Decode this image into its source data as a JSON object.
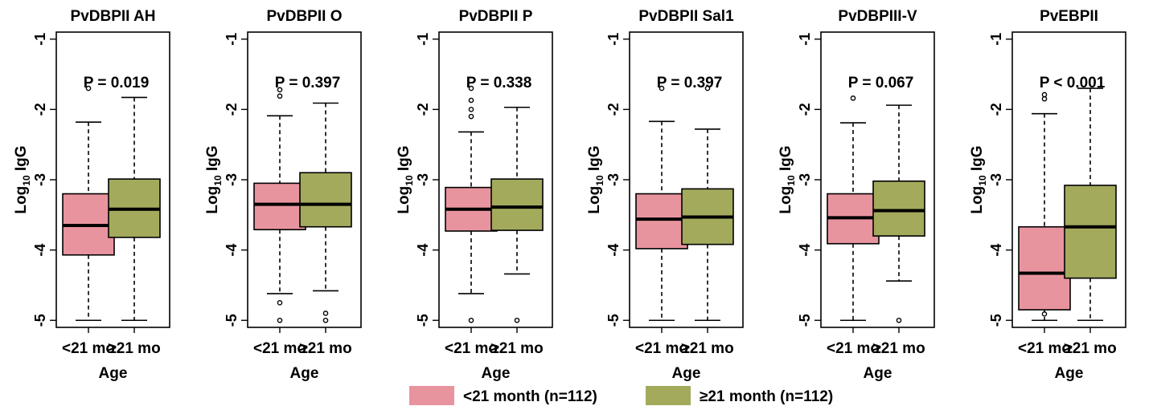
{
  "chart_data": {
    "type": "box",
    "ylabel_main": "Log",
    "ylabel_sub": "10",
    "ylabel_rest": " IgG",
    "xlabel": "Age",
    "categories": [
      "<21 mo",
      "≥21 mo"
    ],
    "ylim": [
      -5.1,
      -0.9
    ],
    "yticks": [
      -1,
      -2,
      -3,
      -4,
      -5
    ],
    "colors": {
      "young": "#E8949F",
      "old": "#A3AA5C"
    },
    "legend": {
      "placement": "bottom-center",
      "items": [
        {
          "label": "<21 month (n=112)",
          "color": "#E8949F"
        },
        {
          "label": "≥21 month (n=112)",
          "color": "#A3AA5C"
        }
      ]
    },
    "panels": [
      {
        "title": "PvDBPII AH",
        "pvalue": "P = 0.019",
        "boxes": [
          {
            "min": -5.0,
            "q1": -4.07,
            "median": -3.65,
            "q3": -3.2,
            "max": -2.18,
            "outliers": [
              -1.7
            ]
          },
          {
            "min": -5.0,
            "q1": -3.82,
            "median": -3.42,
            "q3": -2.99,
            "max": -1.83,
            "outliers": []
          }
        ]
      },
      {
        "title": "PvDBPII O",
        "pvalue": "P = 0.397",
        "boxes": [
          {
            "min": -4.62,
            "q1": -3.71,
            "median": -3.35,
            "q3": -3.05,
            "max": -2.09,
            "outliers": [
              -1.72,
              -1.81,
              -4.75,
              -5.0
            ]
          },
          {
            "min": -4.58,
            "q1": -3.67,
            "median": -3.35,
            "q3": -2.9,
            "max": -1.91,
            "outliers": [
              -4.9,
              -5.0
            ]
          }
        ]
      },
      {
        "title": "PvDBPII P",
        "pvalue": "P = 0.338",
        "boxes": [
          {
            "min": -4.62,
            "q1": -3.73,
            "median": -3.42,
            "q3": -3.11,
            "max": -2.32,
            "outliers": [
              -1.7,
              -1.87,
              -2.0,
              -2.1,
              -5.0
            ]
          },
          {
            "min": -4.34,
            "q1": -3.72,
            "median": -3.39,
            "q3": -2.99,
            "max": -1.97,
            "outliers": [
              -5.0
            ]
          }
        ]
      },
      {
        "title": "PvDBPII Sal1",
        "pvalue": "P = 0.397",
        "boxes": [
          {
            "min": -5.0,
            "q1": -3.98,
            "median": -3.56,
            "q3": -3.2,
            "max": -2.17,
            "outliers": [
              -1.7
            ]
          },
          {
            "min": -5.0,
            "q1": -3.92,
            "median": -3.53,
            "q3": -3.13,
            "max": -2.28,
            "outliers": [
              -1.7
            ]
          }
        ]
      },
      {
        "title": "PvDBPIII-V",
        "pvalue": "P = 0.067",
        "boxes": [
          {
            "min": -5.0,
            "q1": -3.91,
            "median": -3.54,
            "q3": -3.2,
            "max": -2.19,
            "outliers": [
              -1.84
            ]
          },
          {
            "min": -4.44,
            "q1": -3.8,
            "median": -3.44,
            "q3": -3.02,
            "max": -1.94,
            "outliers": [
              -5.0
            ]
          }
        ]
      },
      {
        "title": "PvEBPII",
        "pvalue": "P < 0.001",
        "boxes": [
          {
            "min": -5.0,
            "q1": -4.85,
            "median": -4.33,
            "q3": -3.67,
            "max": -2.06,
            "outliers": [
              -1.79,
              -1.85,
              -4.91
            ]
          },
          {
            "min": -5.0,
            "q1": -4.4,
            "median": -3.67,
            "q3": -3.08,
            "max": -1.7,
            "outliers": []
          }
        ]
      }
    ]
  }
}
